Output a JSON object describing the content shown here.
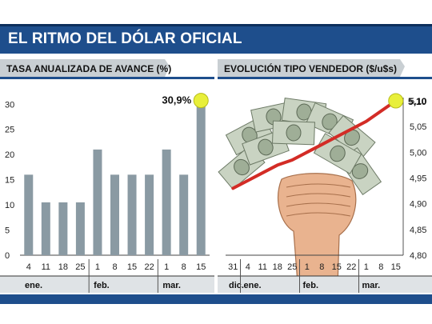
{
  "header": {
    "title": "EL RITMO DEL DÓLAR OFICIAL"
  },
  "colors": {
    "brand_blue": "#1e4e8c",
    "bar_gray": "#8a9aa3",
    "tab_gray": "#c9cfd3",
    "line_red": "#d32c26",
    "highlight_yellow": "#e8ef3a"
  },
  "chart_data": [
    {
      "type": "bar",
      "title": "TASA ANUALIZADA DE AVANCE (%)",
      "categories": [
        "4",
        "11",
        "18",
        "25",
        "1",
        "8",
        "15",
        "22",
        "1",
        "8",
        "15"
      ],
      "month_labels": [
        {
          "label": "ene.",
          "index": 0
        },
        {
          "label": "feb.",
          "index": 4
        },
        {
          "label": "mar.",
          "index": 8
        }
      ],
      "values": [
        16,
        10.5,
        10.5,
        10.5,
        21,
        16,
        16,
        16,
        21,
        16,
        30.9
      ],
      "annotation": "30,9%",
      "ylim": [
        0,
        31
      ],
      "yticks": [
        "0",
        "5",
        "10",
        "15",
        "20",
        "25",
        "30"
      ],
      "ytick_values": [
        0,
        5,
        10,
        15,
        20,
        25,
        30
      ]
    },
    {
      "type": "line",
      "title": "EVOLUCIÓN TIPO VENDEDOR ($/u$s)",
      "categories": [
        "31",
        "4",
        "11",
        "18",
        "25",
        "1",
        "8",
        "15",
        "22",
        "1",
        "8",
        "15"
      ],
      "month_labels": [
        {
          "label": "dic.",
          "index": 0
        },
        {
          "label": "ene.",
          "index": 1
        },
        {
          "label": "feb.",
          "index": 5
        },
        {
          "label": "mar.",
          "index": 9
        }
      ],
      "values": [
        4.93,
        4.945,
        4.96,
        4.975,
        4.985,
        5.0,
        5.015,
        5.03,
        5.045,
        5.06,
        5.08,
        5.1
      ],
      "annotation": "5,10",
      "ylim": [
        4.8,
        5.1
      ],
      "yticks": [
        "4,80",
        "4,85",
        "4,90",
        "4,95",
        "5,00",
        "5,05",
        "5,10"
      ],
      "ytick_values": [
        4.8,
        4.85,
        4.9,
        4.95,
        5.0,
        5.05,
        5.1
      ]
    }
  ]
}
